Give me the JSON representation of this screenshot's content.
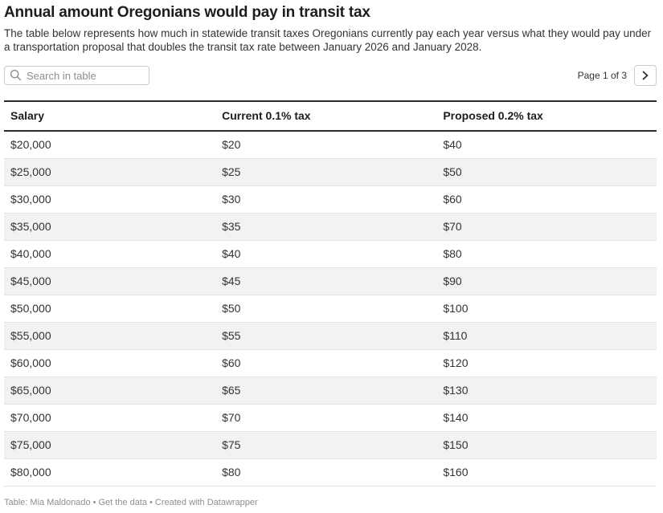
{
  "header": {
    "title": "Annual amount Oregonians would pay in transit tax",
    "description": "The table below represents how much in statewide transit taxes Oregonians currently pay each year versus what they would pay under a transportation proposal that doubles the transit tax rate between January 2026 and January 2028."
  },
  "controls": {
    "search": {
      "placeholder": "Search in table",
      "value": "",
      "icon": "search-icon"
    },
    "pagination": {
      "label": "Page 1 of 3",
      "current_page": 1,
      "total_pages": 3,
      "next_icon": "chevron-right-icon"
    }
  },
  "chart_data": {
    "type": "table",
    "title": "Annual amount Oregonians would pay in transit tax",
    "columns": [
      "Salary",
      "Current 0.1% tax",
      "Proposed 0.2% tax"
    ],
    "rows": [
      [
        "$20,000",
        "$20",
        "$40"
      ],
      [
        "$25,000",
        "$25",
        "$50"
      ],
      [
        "$30,000",
        "$30",
        "$60"
      ],
      [
        "$35,000",
        "$35",
        "$70"
      ],
      [
        "$40,000",
        "$40",
        "$80"
      ],
      [
        "$45,000",
        "$45",
        "$90"
      ],
      [
        "$50,000",
        "$50",
        "$100"
      ],
      [
        "$55,000",
        "$55",
        "$110"
      ],
      [
        "$60,000",
        "$60",
        "$120"
      ],
      [
        "$65,000",
        "$65",
        "$130"
      ],
      [
        "$70,000",
        "$70",
        "$140"
      ],
      [
        "$75,000",
        "$75",
        "$150"
      ],
      [
        "$80,000",
        "$80",
        "$160"
      ]
    ],
    "layout_hints": {
      "striped_rows": true,
      "stripe_color": "#f2f2f2",
      "rule_color": "#2b2b2b"
    }
  },
  "footer": {
    "attribution": "Table: Mia Maldonado",
    "separator": "•",
    "get_data_label": "Get the data",
    "credit_label": "Created with Datawrapper"
  }
}
